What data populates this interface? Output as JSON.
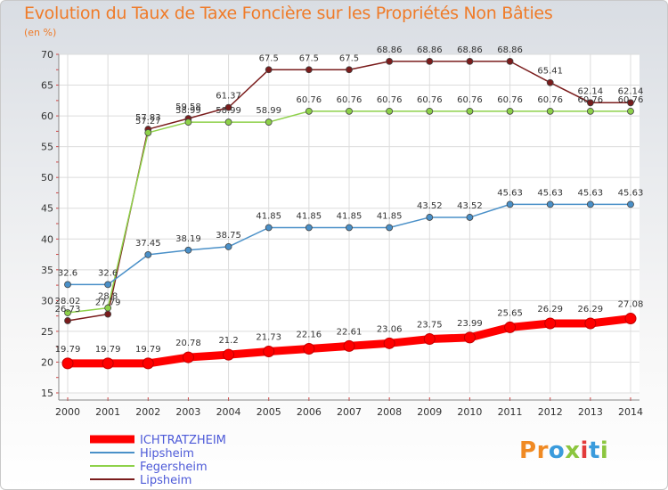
{
  "title": "Evolution du Taux de Taxe Foncière sur les Propriétés Non Bâties",
  "unit_label": "(en %)",
  "logo": {
    "text": "Proxiti",
    "colors": [
      "#f08a24",
      "#f08a24",
      "#3a9bdc",
      "#8cc63f",
      "#e23b3b",
      "#3a9bdc",
      "#8cc63f"
    ]
  },
  "chart_data": {
    "type": "line",
    "x": [
      "2000",
      "2001",
      "2002",
      "2003",
      "2004",
      "2005",
      "2006",
      "2007",
      "2008",
      "2009",
      "2010",
      "2011",
      "2012",
      "2013",
      "2014"
    ],
    "ylim": [
      15,
      70
    ],
    "yticks": [
      15,
      20,
      25,
      30,
      35,
      40,
      45,
      50,
      55,
      60,
      65,
      70
    ],
    "grid": true,
    "legend_position": "bottom-left",
    "series": [
      {
        "name": "ICHTRATZHEIM",
        "color": "#ff0000",
        "values": [
          19.79,
          19.79,
          19.79,
          20.78,
          21.2,
          21.73,
          22.16,
          22.61,
          23.06,
          23.75,
          23.99,
          25.65,
          26.29,
          26.29,
          27.08
        ],
        "labels": [
          "19.79",
          "19.79",
          "19.79",
          "20.78",
          "21.2",
          "21.73",
          "22.16",
          "22.61",
          "23.06",
          "23.75",
          "23.99",
          "25.65",
          "26.29",
          "26.29",
          "27.08"
        ]
      },
      {
        "name": "Hipsheim",
        "color": "#4a90c8",
        "values": [
          32.6,
          32.6,
          37.45,
          38.19,
          38.75,
          41.85,
          41.85,
          41.85,
          41.85,
          43.52,
          43.52,
          45.63,
          45.63,
          45.63,
          45.63
        ],
        "labels": [
          "32.6",
          "32.6",
          "37.45",
          "38.19",
          "38.75",
          "41.85",
          "41.85",
          "41.85",
          "41.85",
          "43.52",
          "43.52",
          "45.63",
          "45.63",
          "45.63",
          "45.63"
        ]
      },
      {
        "name": "Fegersheim",
        "color": "#8ed14a",
        "values": [
          28.02,
          28.8,
          57.27,
          58.99,
          58.99,
          58.99,
          60.76,
          60.76,
          60.76,
          60.76,
          60.76,
          60.76,
          60.76,
          60.76,
          60.76
        ],
        "labels": [
          "28.02",
          "28.8",
          "57.27",
          "58.99",
          "58.99",
          "58.99",
          "60.76",
          "60.76",
          "60.76",
          "60.76",
          "60.76",
          "60.76",
          "60.76",
          "60.76",
          "60.76"
        ]
      },
      {
        "name": "Lipsheim",
        "color": "#7a1c1c",
        "values": [
          26.73,
          27.79,
          57.83,
          59.58,
          61.37,
          67.5,
          67.5,
          67.5,
          68.86,
          68.86,
          68.86,
          68.86,
          65.41,
          62.14,
          62.14
        ],
        "labels": [
          "26.73",
          "27.79",
          "57.83",
          "59.58",
          "61.37",
          "67.5",
          "67.5",
          "67.5",
          "68.86",
          "68.86",
          "68.86",
          "68.86",
          "65.41",
          "62.14",
          "62.14"
        ]
      }
    ]
  }
}
